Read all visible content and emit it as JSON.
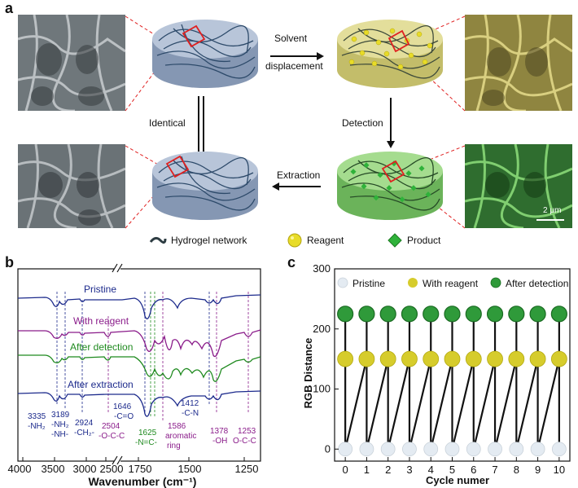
{
  "panel_a": {
    "letter": "a",
    "arrows": {
      "solvent_line1": "Solvent",
      "solvent_line2": "displacement",
      "identical": "Identical",
      "detection": "Detection",
      "extraction": "Extraction"
    },
    "scale_bar": "2 μm",
    "legend": {
      "network": "Hydrogel network",
      "reagent": "Reagent",
      "product": "Product"
    },
    "colors": {
      "gel_blue": "#a9b8cf",
      "gel_yellow": "#d9d58a",
      "gel_green": "#7fc76a",
      "sem_gray": "#7d8488",
      "sem_yellow": "#b9ad5a",
      "sem_green": "#3c8a3a",
      "highlight_red": "#e02020"
    }
  },
  "panel_b": {
    "letter": "b",
    "curve_labels": [
      "Pristine",
      "With reagent",
      "After detection",
      "After extraction"
    ],
    "curve_colors": [
      "#1c2a8c",
      "#8a1c8a",
      "#1f8a1f",
      "#1c2a8c"
    ],
    "annotations": [
      {
        "lines": [
          "3335",
          "-NH₂"
        ],
        "color": "#1c2a8c"
      },
      {
        "lines": [
          "3189",
          "-NH₂",
          "-NH-"
        ],
        "color": "#1c2a8c"
      },
      {
        "lines": [
          "2924",
          "-CH₂-"
        ],
        "color": "#1c2a8c"
      },
      {
        "lines": [
          "2504",
          "-O-C-C"
        ],
        "color": "#8a1c8a"
      },
      {
        "lines": [
          "1646",
          "-C=O"
        ],
        "color": "#1c2a8c"
      },
      {
        "lines": [
          "1625",
          "-N=C-"
        ],
        "color": "#1f8a1f"
      },
      {
        "lines": [
          "1586",
          "aromatic",
          "ring"
        ],
        "color": "#8a1c8a"
      },
      {
        "lines": [
          "1412",
          "-C-N"
        ],
        "color": "#1c2a8c"
      },
      {
        "lines": [
          "1378",
          "-OH"
        ],
        "color": "#8a1c8a"
      },
      {
        "lines": [
          "1253",
          "O-C-C"
        ],
        "color": "#8a1c8a"
      }
    ],
    "x_ticks": [
      "4000",
      "3500",
      "3000",
      "2500",
      "1750",
      "1500",
      "1250"
    ],
    "xlabel": "Wavenumber (cm⁻¹)"
  },
  "chart_data": {
    "type": "scatter",
    "title": "",
    "xlabel": "Cycle numer",
    "ylabel": "RGB Distance",
    "xlim": [
      -0.5,
      10.5
    ],
    "ylim": [
      -20,
      300
    ],
    "x_ticks": [
      "0",
      "1",
      "2",
      "3",
      "4",
      "5",
      "6",
      "7",
      "8",
      "9",
      "10"
    ],
    "y_ticks": [
      "0",
      "100",
      "200",
      "300"
    ],
    "legend_position": "top",
    "series": [
      {
        "name": "Pristine",
        "color": "#e4ebf2",
        "x": [
          0,
          1,
          2,
          3,
          4,
          5,
          6,
          7,
          8,
          9,
          10
        ],
        "y": [
          0,
          0,
          0,
          0,
          0,
          0,
          0,
          0,
          0,
          0,
          0
        ]
      },
      {
        "name": "With reagent",
        "color": "#d6cc2c",
        "x": [
          0,
          1,
          2,
          3,
          4,
          5,
          6,
          7,
          8,
          9,
          10
        ],
        "y": [
          150,
          150,
          150,
          150,
          150,
          150,
          150,
          150,
          150,
          150,
          150
        ]
      },
      {
        "name": "After detection",
        "color": "#2f9a3a",
        "x": [
          0,
          1,
          2,
          3,
          4,
          5,
          6,
          7,
          8,
          9,
          10
        ],
        "y": [
          225,
          225,
          225,
          225,
          225,
          225,
          225,
          225,
          225,
          225,
          225
        ]
      }
    ]
  },
  "panel_c": {
    "letter": "c"
  }
}
